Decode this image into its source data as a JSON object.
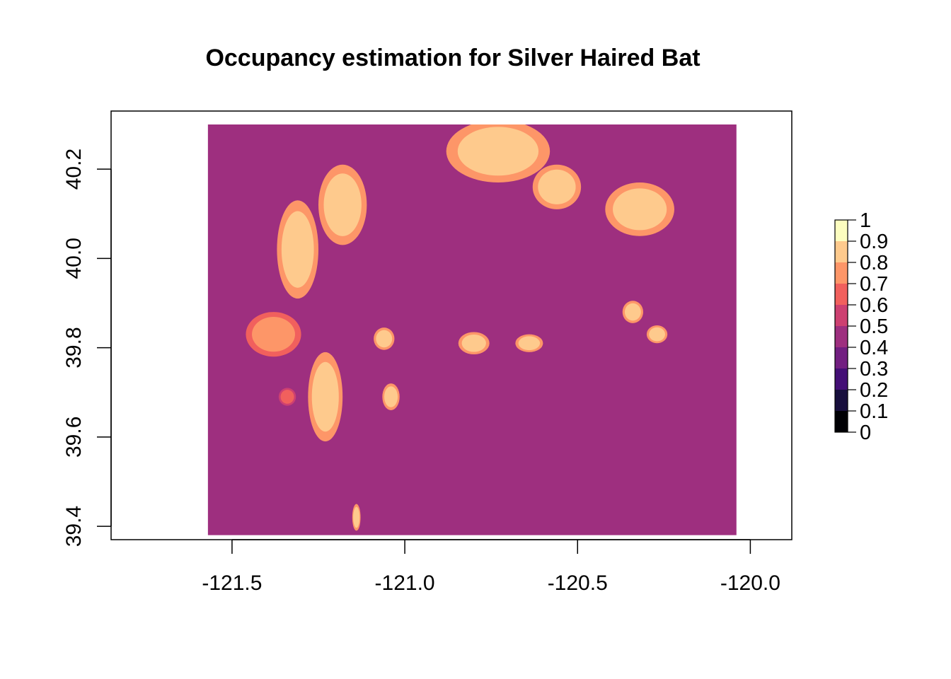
{
  "chart_data": {
    "type": "heatmap",
    "title": "Occupancy estimation for Silver Haired Bat",
    "xlabel": "",
    "ylabel": "",
    "xlim": [
      -121.85,
      -119.88
    ],
    "ylim": [
      39.37,
      40.33
    ],
    "x_ticks": [
      -121.5,
      -121.0,
      -120.5,
      -120.0
    ],
    "x_tick_labels": [
      "-121.5",
      "-121.0",
      "-120.5",
      "-120.0"
    ],
    "y_ticks": [
      39.4,
      39.6,
      39.8,
      40.0,
      40.2
    ],
    "y_tick_labels": [
      "39.4",
      "39.6",
      "39.8",
      "40.0",
      "40.2"
    ],
    "background_value": 0.45,
    "raster_extent": {
      "x": [
        -121.57,
        -120.04
      ],
      "y": [
        39.38,
        40.3
      ]
    },
    "high_occupancy_patches": [
      {
        "x": -121.31,
        "y": 40.02,
        "rx": 0.06,
        "ry": 0.11,
        "value": 0.85
      },
      {
        "x": -121.18,
        "y": 40.12,
        "rx": 0.07,
        "ry": 0.09,
        "value": 0.85
      },
      {
        "x": -121.38,
        "y": 39.83,
        "rx": 0.08,
        "ry": 0.05,
        "value": 0.75
      },
      {
        "x": -121.23,
        "y": 39.69,
        "rx": 0.05,
        "ry": 0.1,
        "value": 0.8
      },
      {
        "x": -121.06,
        "y": 39.82,
        "rx": 0.03,
        "ry": 0.025,
        "value": 0.85
      },
      {
        "x": -120.73,
        "y": 40.24,
        "rx": 0.15,
        "ry": 0.07,
        "value": 0.85
      },
      {
        "x": -120.56,
        "y": 40.16,
        "rx": 0.07,
        "ry": 0.05,
        "value": 0.85
      },
      {
        "x": -120.32,
        "y": 40.11,
        "rx": 0.1,
        "ry": 0.06,
        "value": 0.8
      },
      {
        "x": -120.8,
        "y": 39.81,
        "rx": 0.045,
        "ry": 0.025,
        "value": 0.85
      },
      {
        "x": -120.64,
        "y": 39.81,
        "rx": 0.04,
        "ry": 0.02,
        "value": 0.85
      },
      {
        "x": -120.34,
        "y": 39.88,
        "rx": 0.03,
        "ry": 0.025,
        "value": 0.85
      },
      {
        "x": -120.27,
        "y": 39.83,
        "rx": 0.03,
        "ry": 0.02,
        "value": 0.85
      },
      {
        "x": -121.04,
        "y": 39.69,
        "rx": 0.025,
        "ry": 0.03,
        "value": 0.85
      },
      {
        "x": -121.34,
        "y": 39.69,
        "rx": 0.025,
        "ry": 0.02,
        "value": 0.65
      },
      {
        "x": -121.14,
        "y": 39.42,
        "rx": 0.012,
        "ry": 0.03,
        "value": 0.85
      }
    ],
    "legend": {
      "placement": "right",
      "breaks": [
        0,
        0.1,
        0.2,
        0.3,
        0.4,
        0.5,
        0.6,
        0.7,
        0.8,
        0.9,
        1
      ],
      "labels": [
        "0",
        "0.1",
        "0.2",
        "0.3",
        "0.4",
        "0.5",
        "0.6",
        "0.7",
        "0.8",
        "0.9",
        "1"
      ],
      "colors": [
        "#000004",
        "#180f3d",
        "#440f76",
        "#721f81",
        "#9e2f7f",
        "#cd4071",
        "#f1605d",
        "#fd9668",
        "#feca8d",
        "#fcfdbf"
      ]
    }
  }
}
